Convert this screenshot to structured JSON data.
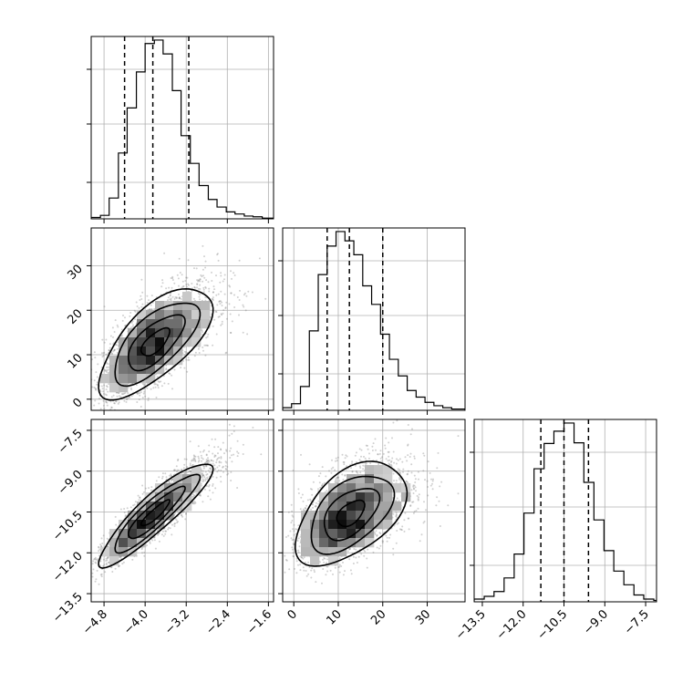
{
  "chart_data": {
    "type": "corner",
    "grid": true,
    "axes_ticks": {
      "p1": [
        "−4.8",
        "−4.0",
        "−3.2",
        "−2.4",
        "−1.6"
      ],
      "p2": [
        "0",
        "10",
        "20",
        "30"
      ],
      "p3": [
        "−13.5",
        "−12.0",
        "−10.5",
        "−9.0",
        "−7.5"
      ]
    },
    "ranges": {
      "p1": [
        -5.05,
        -1.5
      ],
      "p2": [
        -2.5,
        38.5
      ],
      "p3": [
        -13.8,
        -7.1
      ]
    },
    "parameters": [
      {
        "id": "p1",
        "quantiles": [
          -4.4,
          -3.85,
          -3.15
        ],
        "hist_bin_edges": [
          -5.05,
          -4.87,
          -4.7,
          -4.52,
          -4.35,
          -4.17,
          -4.0,
          -3.82,
          -3.65,
          -3.47,
          -3.3,
          -3.12,
          -2.95,
          -2.77,
          -2.6,
          -2.42,
          -2.25,
          -2.07,
          -1.9,
          -1.72,
          -1.5
        ],
        "hist_values": [
          2,
          5,
          30,
          95,
          160,
          212,
          253,
          258,
          238,
          185,
          120,
          80,
          48,
          28,
          17,
          10,
          7,
          4,
          3,
          1
        ]
      },
      {
        "id": "p2",
        "quantiles": [
          7.5,
          12.5,
          20.0
        ],
        "hist_bin_edges": [
          -2.5,
          -0.5,
          1.5,
          3.5,
          5.5,
          7.5,
          9.5,
          11.5,
          13.5,
          15.5,
          17.5,
          19.5,
          21.5,
          23.5,
          25.5,
          27.5,
          29.5,
          31.5,
          33.5,
          35.5,
          38.5
        ],
        "hist_values": [
          4,
          10,
          36,
          120,
          205,
          248,
          270,
          256,
          235,
          188,
          160,
          115,
          77,
          52,
          30,
          20,
          12,
          7,
          4,
          2
        ]
      },
      {
        "id": "p3",
        "quantiles": [
          -11.35,
          -10.5,
          -9.6
        ],
        "hist_bin_edges": [
          -13.8,
          -13.43,
          -13.07,
          -12.7,
          -12.33,
          -11.97,
          -11.6,
          -11.23,
          -10.87,
          -10.5,
          -10.13,
          -9.77,
          -9.4,
          -9.03,
          -8.67,
          -8.3,
          -7.93,
          -7.57,
          -7.2,
          -7.1
        ],
        "hist_values": [
          4,
          8,
          15,
          35,
          70,
          130,
          195,
          232,
          250,
          262,
          233,
          175,
          120,
          75,
          45,
          25,
          10,
          4,
          2
        ]
      }
    ],
    "correlations": {
      "p2_vs_p1": 0.68,
      "p3_vs_p1": 0.9,
      "p3_vs_p2": 0.5
    }
  }
}
